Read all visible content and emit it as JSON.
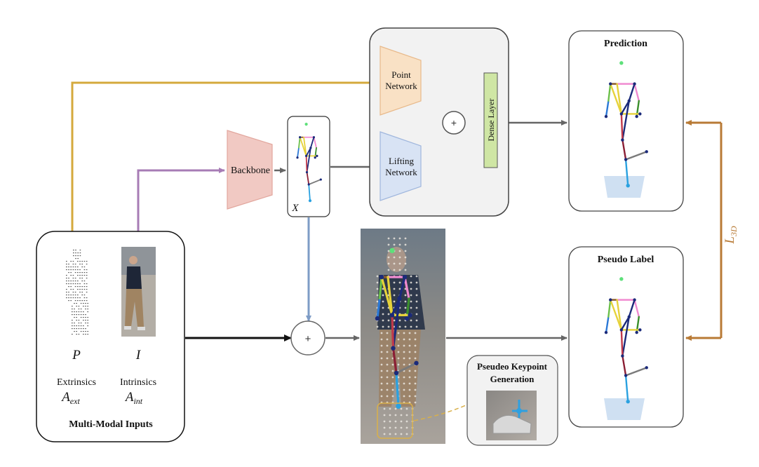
{
  "inputs": {
    "title": "Multi-Modal Inputs",
    "point_symbol": "P",
    "image_symbol": "I",
    "extrinsics_label": "Extrinsics",
    "extrinsics_symbol": "A",
    "extrinsics_sub": "ext",
    "intrinsics_label": "Intrinsics",
    "intrinsics_symbol": "A",
    "intrinsics_sub": "int"
  },
  "backbone": {
    "label": "Backbone"
  },
  "keypoints2d": {
    "symbol": "X"
  },
  "network": {
    "point_line1": "Point",
    "point_line2": "Network",
    "lifting_line1": "Lifting",
    "lifting_line2": "Network",
    "dense_label": "Dense Layer"
  },
  "prediction": {
    "title": "Prediction"
  },
  "pseudo_label": {
    "title": "Pseudo Label"
  },
  "loss": {
    "symbol": "L",
    "sub": "3D"
  },
  "pseudo_gen": {
    "line1": "Pseudeo Keypoint",
    "line2": "Generation"
  },
  "plus_symbol": "+",
  "colors": {
    "orange_path": "#d4a93c",
    "purple_path": "#a77cb5",
    "blue_path": "#7e9cc6",
    "gray_arrow": "#666666",
    "loss_arrow": "#b87a35",
    "backbone_fill": "#f1c9c3",
    "point_net_fill": "#f9e1c5",
    "lifting_net_fill": "#d8e3f4",
    "dense_fill": "#cfe6a4",
    "panel_fill": "#f2f2f2"
  }
}
